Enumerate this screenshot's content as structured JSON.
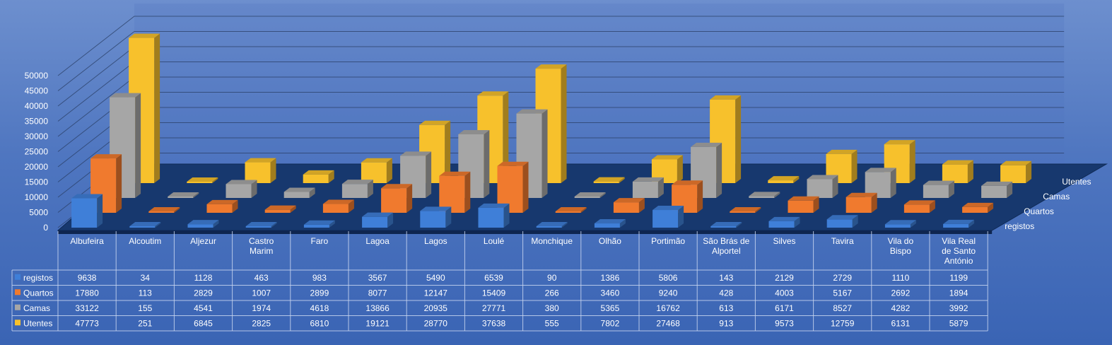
{
  "chart_data": {
    "type": "bar",
    "subtype": "3d-clustered-column-with-data-table",
    "categories": [
      "Albufeira",
      "Alcoutim",
      "Aljezur",
      "Castro Marim",
      "Faro",
      "Lagoa",
      "Lagos",
      "Loulé",
      "Monchique",
      "Olhão",
      "Portimão",
      "São Brás de Alportel",
      "Silves",
      "Tavira",
      "Vila do Bispo",
      "Vila Real de Santo António"
    ],
    "series": [
      {
        "name": "registos",
        "color": "#3f7fd8",
        "values": [
          9638,
          34,
          1128,
          463,
          983,
          3567,
          5490,
          6539,
          90,
          1386,
          5806,
          143,
          2129,
          2729,
          1110,
          1199
        ]
      },
      {
        "name": "Quartos",
        "color": "#f07a2e",
        "values": [
          17880,
          113,
          2829,
          1007,
          2899,
          8077,
          12147,
          15409,
          266,
          3460,
          9240,
          428,
          4003,
          5167,
          2692,
          1894
        ]
      },
      {
        "name": "Camas",
        "color": "#a6a6a6",
        "values": [
          33122,
          155,
          4541,
          1974,
          4618,
          13866,
          20935,
          27771,
          380,
          5365,
          16762,
          613,
          6171,
          8527,
          4282,
          3992
        ]
      },
      {
        "name": "Utentes",
        "color": "#f7c12c",
        "values": [
          47773,
          251,
          6845,
          2825,
          6810,
          19121,
          28770,
          37638,
          555,
          7802,
          27468,
          913,
          9573,
          12759,
          6131,
          5879
        ]
      }
    ],
    "yticks": [
      0,
      5000,
      10000,
      15000,
      20000,
      25000,
      30000,
      35000,
      40000,
      45000,
      50000
    ],
    "ylim": [
      0,
      50000
    ],
    "grid": true,
    "legend": "data-table"
  }
}
